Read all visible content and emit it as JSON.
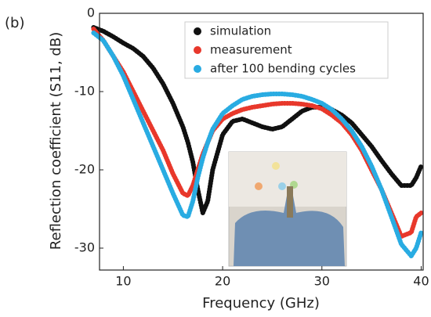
{
  "chart_data": {
    "type": "line",
    "panel_label": "(b)",
    "x_label": "Frequency (GHz)",
    "y_label": "Reflection coefficient (S11, dB)",
    "x": [
      7,
      8,
      9,
      10,
      11,
      12,
      13,
      14,
      15,
      16,
      16.5,
      17,
      17.5,
      18,
      18.5,
      19,
      20,
      21,
      22,
      23,
      24,
      25,
      26,
      27,
      28,
      29,
      30,
      31,
      32,
      33,
      34,
      35,
      36,
      37,
      38,
      39,
      39.5,
      40
    ],
    "series": [
      {
        "name": "simulation",
        "color": "#111111",
        "values": [
          -1.8,
          -2.3,
          -3,
          -3.8,
          -4.5,
          -5.5,
          -7,
          -9,
          -11.5,
          -14.5,
          -16.5,
          -19,
          -22.5,
          -25.5,
          -24,
          -20,
          -15.5,
          -13.8,
          -13.5,
          -14,
          -14.5,
          -14.8,
          -14.5,
          -13.5,
          -12.5,
          -12,
          -12,
          -12.3,
          -13,
          -14,
          -15.5,
          -17,
          -18.8,
          -20.5,
          -22,
          -22,
          -21,
          -19.5
        ]
      },
      {
        "name": "measurement",
        "color": "#e8382c",
        "values": [
          -2,
          -3.5,
          -5.5,
          -7.5,
          -10,
          -12.5,
          -15,
          -17.5,
          -20.5,
          -23,
          -23.3,
          -22,
          -20,
          -18,
          -16.5,
          -15,
          -13.5,
          -12.8,
          -12.3,
          -12,
          -11.8,
          -11.6,
          -11.5,
          -11.5,
          -11.6,
          -11.8,
          -12.2,
          -13,
          -14,
          -15.5,
          -17.5,
          -20,
          -22.5,
          -25.5,
          -28.5,
          -28,
          -26,
          -25.5
        ]
      },
      {
        "name": "after 100 bending cycles",
        "color": "#29abe2",
        "values": [
          -2.5,
          -3.5,
          -5.5,
          -8,
          -11,
          -14,
          -17,
          -20,
          -23,
          -25.8,
          -26,
          -24,
          -21,
          -18.5,
          -16.5,
          -14.8,
          -12.8,
          -11.8,
          -11,
          -10.6,
          -10.4,
          -10.3,
          -10.3,
          -10.4,
          -10.6,
          -11,
          -11.5,
          -12.3,
          -13.5,
          -15,
          -17,
          -19.5,
          -22.5,
          -26,
          -29.5,
          -31,
          -30,
          -28
        ]
      }
    ],
    "xlim": [
      7.6,
      40.2
    ],
    "ylim": [
      -32.8,
      0
    ],
    "xticks": [
      10,
      20,
      30,
      40
    ],
    "yticks": [
      0,
      -10,
      -20,
      -30
    ],
    "legend_position": "upper right"
  }
}
